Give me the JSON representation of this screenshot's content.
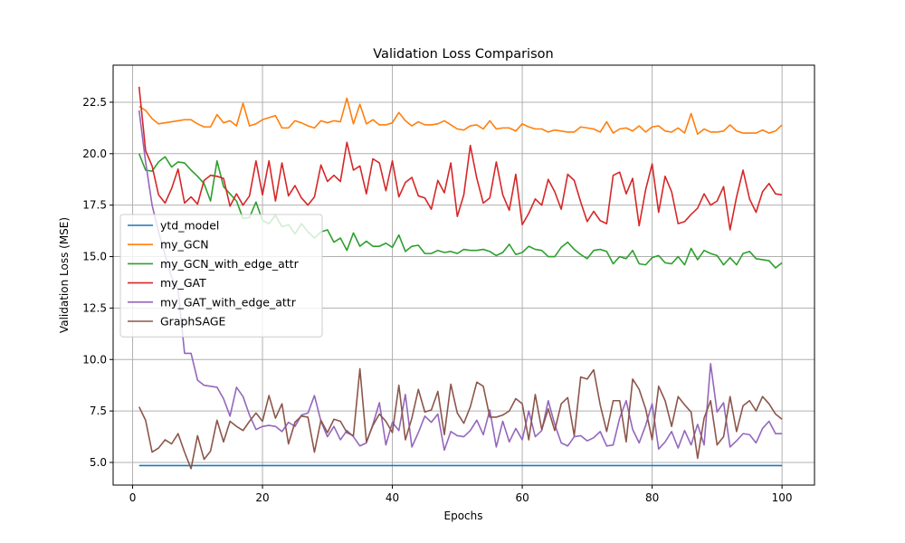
{
  "chart_data": {
    "type": "line",
    "title": "Validation Loss Comparison",
    "xlabel": "Epochs",
    "ylabel": "Validation Loss (MSE)",
    "xlim": [
      -3,
      105
    ],
    "ylim": [
      3.9,
      24.3
    ],
    "x_ticks": [
      0,
      20,
      40,
      60,
      80,
      100
    ],
    "y_ticks": [
      5.0,
      7.5,
      10.0,
      12.5,
      15.0,
      17.5,
      20.0,
      22.5
    ],
    "grid": true,
    "legend_position": "center-left",
    "x_start": 1,
    "series": [
      {
        "name": "ytd_model",
        "color": "#1f77b4",
        "values": [
          4.85,
          4.85,
          4.85,
          4.85,
          4.85,
          4.85,
          4.85,
          4.85,
          4.85,
          4.85,
          4.85,
          4.85,
          4.85,
          4.85,
          4.85,
          4.85,
          4.85,
          4.85,
          4.85,
          4.85,
          4.85,
          4.85,
          4.85,
          4.85,
          4.85,
          4.85,
          4.85,
          4.85,
          4.85,
          4.85,
          4.85,
          4.85,
          4.85,
          4.85,
          4.85,
          4.85,
          4.85,
          4.85,
          4.85,
          4.85,
          4.85,
          4.85,
          4.85,
          4.85,
          4.85,
          4.85,
          4.85,
          4.85,
          4.85,
          4.85,
          4.85,
          4.85,
          4.85,
          4.85,
          4.85,
          4.85,
          4.85,
          4.85,
          4.85,
          4.85,
          4.85,
          4.85,
          4.85,
          4.85,
          4.85,
          4.85,
          4.85,
          4.85,
          4.85,
          4.85,
          4.85,
          4.85,
          4.85,
          4.85,
          4.85,
          4.85,
          4.85,
          4.85,
          4.85,
          4.85,
          4.85,
          4.85,
          4.85,
          4.85,
          4.85,
          4.85,
          4.85,
          4.85,
          4.85,
          4.85,
          4.85,
          4.85,
          4.85,
          4.85,
          4.85,
          4.85,
          4.85,
          4.85,
          4.85,
          4.85
        ]
      },
      {
        "name": "my_GCN",
        "color": "#ff7f0e",
        "values": [
          22.3,
          22.1,
          21.7,
          21.45,
          21.5,
          21.55,
          21.6,
          21.65,
          21.65,
          21.45,
          21.3,
          21.3,
          21.9,
          21.5,
          21.6,
          21.35,
          22.45,
          21.35,
          21.45,
          21.65,
          21.75,
          21.85,
          21.25,
          21.25,
          21.6,
          21.5,
          21.35,
          21.25,
          21.6,
          21.5,
          21.6,
          21.55,
          22.7,
          21.45,
          22.4,
          21.45,
          21.65,
          21.4,
          21.4,
          21.5,
          22.0,
          21.6,
          21.35,
          21.55,
          21.4,
          21.4,
          21.45,
          21.6,
          21.4,
          21.2,
          21.15,
          21.35,
          21.4,
          21.2,
          21.6,
          21.2,
          21.25,
          21.25,
          21.1,
          21.45,
          21.3,
          21.2,
          21.2,
          21.05,
          21.15,
          21.1,
          21.05,
          21.05,
          21.3,
          21.25,
          21.2,
          21.05,
          21.55,
          21.0,
          21.2,
          21.25,
          21.1,
          21.35,
          21.05,
          21.3,
          21.35,
          21.1,
          21.05,
          21.25,
          21.0,
          21.95,
          20.95,
          21.2,
          21.05,
          21.05,
          21.1,
          21.4,
          21.1,
          21.0,
          21.0,
          21.0,
          21.15,
          21.0,
          21.1,
          21.4
        ]
      },
      {
        "name": "my_GCN_with_edge_attr",
        "color": "#2ca02c",
        "values": [
          20.0,
          19.2,
          19.15,
          19.6,
          19.85,
          19.35,
          19.6,
          19.55,
          19.2,
          18.9,
          18.55,
          17.7,
          19.65,
          18.4,
          18.05,
          17.7,
          16.85,
          16.9,
          17.65,
          16.75,
          16.6,
          17.0,
          16.45,
          16.55,
          16.1,
          16.6,
          16.2,
          15.9,
          16.2,
          16.3,
          15.7,
          15.9,
          15.3,
          16.15,
          15.5,
          15.75,
          15.5,
          15.5,
          15.65,
          15.45,
          16.05,
          15.25,
          15.5,
          15.55,
          15.15,
          15.15,
          15.3,
          15.2,
          15.25,
          15.15,
          15.35,
          15.3,
          15.3,
          15.35,
          15.25,
          15.05,
          15.2,
          15.6,
          15.1,
          15.2,
          15.5,
          15.35,
          15.3,
          15.0,
          15.0,
          15.45,
          15.7,
          15.35,
          15.1,
          14.9,
          15.3,
          15.35,
          15.25,
          14.65,
          15.0,
          14.9,
          15.3,
          14.65,
          14.6,
          14.95,
          15.05,
          14.7,
          14.65,
          15.0,
          14.6,
          15.4,
          14.85,
          15.3,
          15.15,
          15.05,
          14.6,
          14.95,
          14.6,
          15.15,
          15.25,
          14.9,
          14.85,
          14.8,
          14.45,
          14.7
        ]
      },
      {
        "name": "my_GAT",
        "color": "#d62728",
        "values": [
          23.25,
          20.15,
          19.4,
          18.0,
          17.6,
          18.3,
          19.25,
          17.6,
          17.9,
          17.55,
          18.7,
          18.95,
          18.9,
          18.8,
          17.45,
          18.05,
          17.5,
          17.95,
          19.65,
          18.0,
          19.65,
          17.7,
          19.55,
          17.95,
          18.45,
          17.85,
          17.5,
          17.9,
          19.45,
          18.65,
          18.95,
          18.65,
          20.55,
          19.2,
          19.4,
          18.05,
          19.75,
          19.55,
          18.2,
          19.65,
          17.9,
          18.6,
          18.85,
          17.95,
          17.85,
          17.3,
          18.7,
          18.1,
          19.55,
          16.95,
          18.0,
          20.4,
          18.8,
          17.6,
          17.85,
          19.6,
          18.0,
          17.25,
          19.0,
          16.55,
          17.1,
          17.8,
          17.5,
          18.75,
          18.15,
          17.3,
          19.0,
          18.7,
          17.65,
          16.7,
          17.2,
          16.75,
          16.6,
          18.95,
          19.1,
          18.05,
          18.8,
          16.5,
          18.25,
          19.5,
          17.15,
          18.9,
          18.15,
          16.6,
          16.7,
          17.05,
          17.35,
          18.05,
          17.5,
          17.7,
          18.4,
          16.3,
          17.9,
          19.2,
          17.8,
          17.15,
          18.15,
          18.55,
          18.05,
          18.0
        ]
      },
      {
        "name": "my_GAT_with_edge_attr",
        "color": "#9467bd",
        "values": [
          22.1,
          19.6,
          17.5,
          16.2,
          15.1,
          14.0,
          13.4,
          10.3,
          10.3,
          9.0,
          8.75,
          8.7,
          8.65,
          8.1,
          7.25,
          8.65,
          8.2,
          7.3,
          6.6,
          6.75,
          6.8,
          6.75,
          6.5,
          6.95,
          6.75,
          7.3,
          7.4,
          8.25,
          7.0,
          6.25,
          6.75,
          6.1,
          6.55,
          6.25,
          5.8,
          5.95,
          6.85,
          7.9,
          5.85,
          6.95,
          6.55,
          8.3,
          5.75,
          6.45,
          7.25,
          6.95,
          7.35,
          5.6,
          6.5,
          6.3,
          6.25,
          6.55,
          7.05,
          6.35,
          7.55,
          5.75,
          7.0,
          6.0,
          6.65,
          6.1,
          7.5,
          6.25,
          6.55,
          8.0,
          6.85,
          5.95,
          5.8,
          6.25,
          6.3,
          6.05,
          6.2,
          6.5,
          5.8,
          5.85,
          7.15,
          8.0,
          6.6,
          5.95,
          6.8,
          7.85,
          5.65,
          6.0,
          6.5,
          5.7,
          6.55,
          5.85,
          6.85,
          5.85,
          9.8,
          7.45,
          7.9,
          5.75,
          6.05,
          6.4,
          6.35,
          5.95,
          6.65,
          7.0,
          6.4,
          6.4
        ]
      },
      {
        "name": "GraphSAGE",
        "color": "#8c564b",
        "values": [
          7.7,
          7.05,
          5.5,
          5.7,
          6.1,
          5.9,
          6.4,
          5.5,
          4.7,
          6.3,
          5.15,
          5.55,
          7.05,
          6.0,
          7.0,
          6.75,
          6.55,
          7.0,
          7.4,
          7.0,
          8.25,
          7.15,
          7.85,
          5.9,
          6.95,
          7.25,
          7.2,
          5.5,
          7.05,
          6.45,
          7.1,
          7.0,
          6.45,
          6.3,
          9.55,
          6.0,
          6.8,
          7.35,
          7.0,
          6.45,
          8.75,
          6.1,
          7.15,
          8.55,
          7.45,
          7.55,
          8.45,
          6.35,
          8.8,
          7.4,
          6.9,
          7.7,
          8.9,
          8.7,
          7.2,
          7.2,
          7.3,
          7.5,
          8.1,
          7.85,
          6.1,
          8.3,
          6.6,
          7.6,
          6.55,
          7.85,
          8.15,
          6.3,
          9.15,
          9.05,
          9.5,
          7.8,
          6.5,
          8.0,
          8.0,
          6.0,
          9.05,
          8.55,
          7.6,
          6.1,
          8.7,
          8.0,
          6.75,
          8.2,
          7.8,
          7.45,
          5.2,
          7.15,
          8.0,
          5.85,
          6.25,
          8.2,
          6.5,
          7.75,
          8.0,
          7.5,
          8.2,
          7.85,
          7.35,
          7.1
        ]
      }
    ]
  }
}
